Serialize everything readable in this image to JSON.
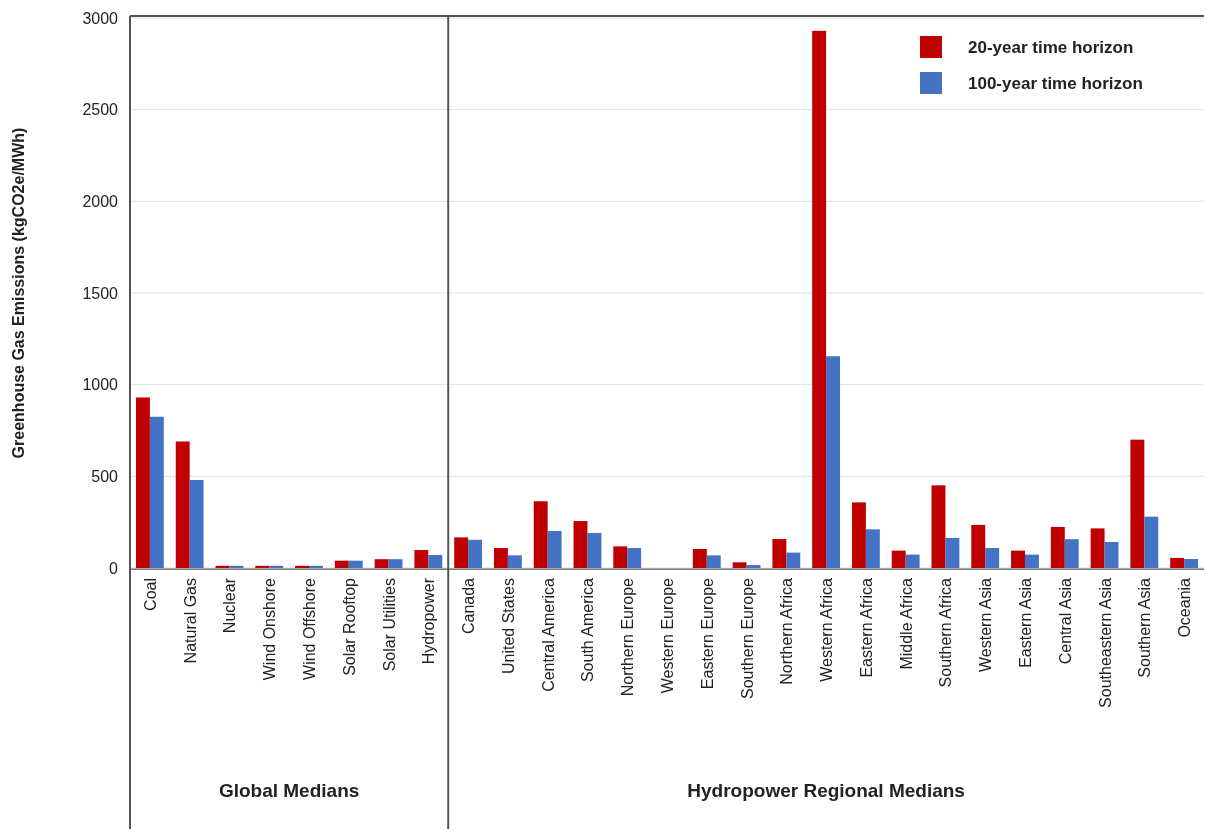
{
  "chart_data": {
    "type": "bar",
    "ylabel": "Greenhouse Gas Emissions (kgCO2e/MWh)",
    "categories": [
      "Coal",
      "Natural Gas",
      "Nuclear",
      "Wind Onshore",
      "Wind Offshore",
      "Solar Rooftop",
      "Solar Utilities",
      "Hydropower",
      "Canada",
      "United States",
      "Central America",
      "South America",
      "Northern Europe",
      "Western Europe",
      "Eastern Europe",
      "Southern Europe",
      "Northern Africa",
      "Western Africa",
      "Eastern Africa",
      "Middle Africa",
      "Southern Africa",
      "Western Asia",
      "Eastern Asia",
      "Central Asia",
      "Southeastern Asia",
      "Southern Asia",
      "Oceania"
    ],
    "series": [
      {
        "name": "20-year time horizon",
        "color": "#c00000",
        "values": [
          930,
          690,
          12,
          12,
          12,
          40,
          48,
          98,
          167,
          109,
          364,
          256,
          118,
          null,
          104,
          31,
          158,
          2930,
          358,
          95,
          451,
          235,
          95,
          224,
          216,
          700,
          55
        ]
      },
      {
        "name": "100-year time horizon",
        "color": "#4472c4",
        "values": [
          825,
          480,
          12,
          12,
          12,
          40,
          48,
          71,
          154,
          69,
          202,
          191,
          109,
          null,
          69,
          16,
          84,
          1155,
          211,
          73,
          164,
          109,
          73,
          157,
          142,
          280,
          49
        ]
      }
    ],
    "ylim": [
      0,
      3000
    ],
    "yticks": [
      0,
      500,
      1000,
      1500,
      2000,
      2500,
      3000
    ],
    "grid": "y",
    "legend": "top right",
    "ref_lines": [
      {
        "axis": "x",
        "value": "Canada",
        "color": "#555555"
      }
    ],
    "annotations": [
      "Global Medians",
      "Hydropower Regional Medians"
    ]
  }
}
